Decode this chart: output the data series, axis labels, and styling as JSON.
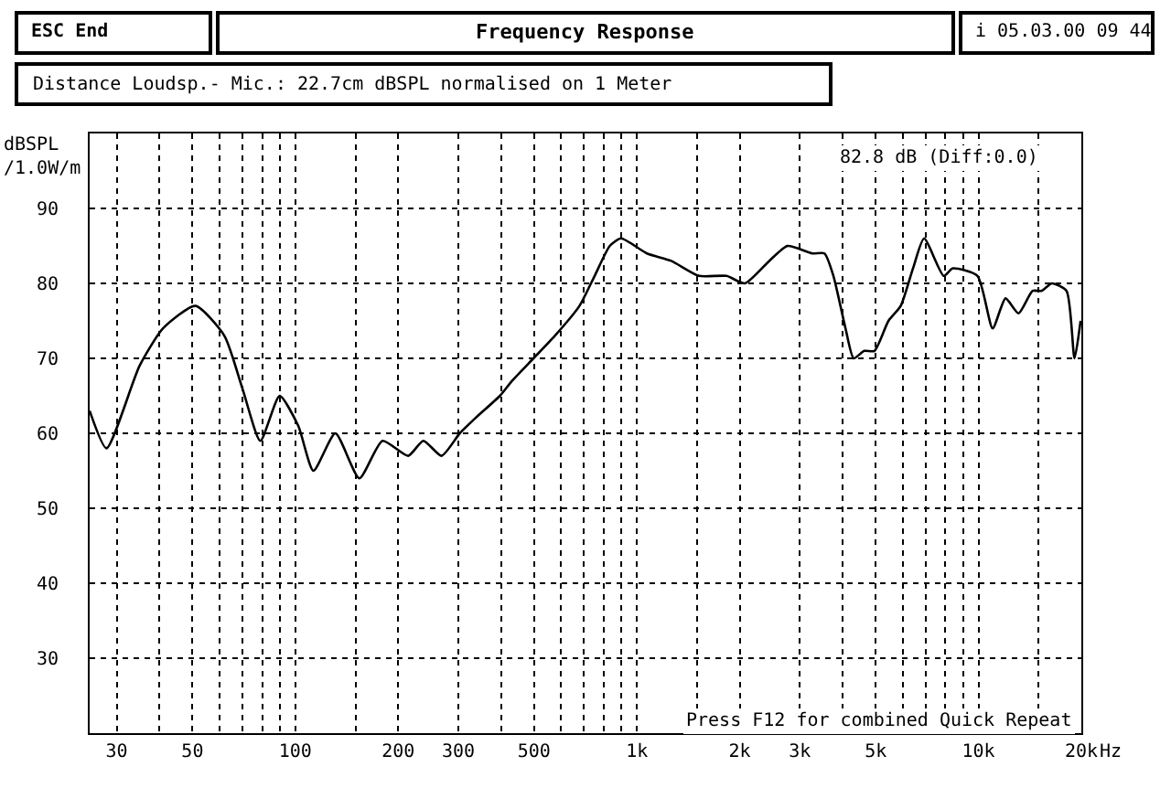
{
  "chart_data": {
    "type": "line",
    "title": "Frequency Response",
    "ylabel": "dBSPL\n/1.0W/m",
    "annotations": [
      "ESC End",
      "i 05.03.00 09 44",
      "Distance Loudsp.- Mic.: 22.7cm dBSPL normalised on 1 Meter",
      "82.8 dB (Diff:0.0)",
      "Press F12 for combined Quick Repeat"
    ],
    "log": "x",
    "grid": true,
    "marker": "none",
    "line_style": "solid",
    "xlim": [
      25,
      20000
    ],
    "ylim": [
      20,
      100
    ],
    "xticks": [
      30,
      {
        "value": 40,
        "label": null
      },
      50,
      {
        "value": 60,
        "label": null
      },
      {
        "value": 70,
        "label": null
      },
      {
        "value": 80,
        "label": null
      },
      {
        "value": 90,
        "label": null
      },
      100,
      {
        "value": 150,
        "label": null
      },
      200,
      300,
      {
        "value": 400,
        "label": null
      },
      500,
      {
        "value": 600,
        "label": null
      },
      {
        "value": 700,
        "label": null
      },
      {
        "value": 800,
        "label": null
      },
      {
        "value": 900,
        "label": null
      },
      {
        "value": 1000,
        "label": "1k"
      },
      {
        "value": 1500,
        "label": null
      },
      {
        "value": 2000,
        "label": "2k"
      },
      {
        "value": 3000,
        "label": "3k"
      },
      {
        "value": 4000,
        "label": null
      },
      {
        "value": 5000,
        "label": "5k"
      },
      {
        "value": 6000,
        "label": null
      },
      {
        "value": 7000,
        "label": null
      },
      {
        "value": 8000,
        "label": null
      },
      {
        "value": 9000,
        "label": null
      },
      {
        "value": 10000,
        "label": "10k"
      },
      {
        "value": 15000,
        "label": null
      },
      {
        "value": 20000,
        "label": "20k"
      }
    ],
    "xlabel": "Hz",
    "yticks": [
      30,
      40,
      50,
      60,
      70,
      80,
      90
    ],
    "series": [
      {
        "color": "#000000",
        "x": [
          25,
          28,
          35,
          41,
          51,
          62,
          70,
          79,
          90,
          102,
          113,
          131,
          154,
          180,
          214,
          237,
          268,
          303,
          336,
          397,
          431,
          498,
          575,
          679,
          752,
          833,
          898,
          1070,
          1260,
          1520,
          1830,
          2070,
          2440,
          2760,
          3260,
          3540,
          3760,
          4080,
          4310,
          4630,
          4960,
          5450,
          5920,
          6430,
          6930,
          7910,
          8410,
          9930,
          11000,
          12000,
          13100,
          14400,
          15300,
          16400,
          18100,
          19100,
          19900
        ],
        "values": [
          63,
          58,
          69,
          74,
          77,
          73,
          66,
          59,
          65,
          61,
          55,
          60,
          54,
          59,
          57,
          59,
          57,
          60,
          62,
          65,
          67,
          70,
          73,
          77,
          81,
          85,
          86,
          84,
          83,
          81,
          81,
          80,
          83,
          85,
          84,
          84,
          81,
          74,
          70,
          71,
          71,
          75,
          77,
          82,
          86,
          81,
          82,
          81,
          74,
          78,
          76,
          79,
          79,
          80,
          79,
          70,
          75
        ]
      }
    ]
  }
}
